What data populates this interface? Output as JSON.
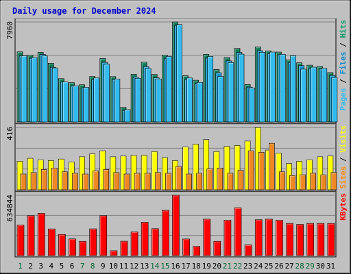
{
  "chart_data": {
    "type": "bar",
    "title": "Daily usage for December 2024",
    "title_color": "#0000cc",
    "days": [
      "1",
      "2",
      "3",
      "4",
      "5",
      "6",
      "7",
      "8",
      "9",
      "10",
      "11",
      "12",
      "13",
      "14",
      "15",
      "16",
      "17",
      "18",
      "19",
      "20",
      "21",
      "22",
      "23",
      "24",
      "25",
      "26",
      "27",
      "28",
      "29",
      "30",
      "31"
    ],
    "weekend_days": [
      "1",
      "7",
      "8",
      "14",
      "15",
      "21",
      "22",
      "28",
      "29"
    ],
    "weekend_color": "#006633",
    "weekday_color": "#000000",
    "panels": [
      {
        "max_label": "7960",
        "max": 7960,
        "legend": [
          {
            "text": "Pages",
            "color": "#33bbee"
          },
          {
            "text": " / ",
            "color": "#000000"
          },
          {
            "text": "Files",
            "color": "#0088cc"
          },
          {
            "text": " / ",
            "color": "#000000"
          },
          {
            "text": "Hits",
            "color": "#009966"
          }
        ],
        "series": [
          {
            "name": "Hits",
            "color": "#0d7a55",
            "values": [
              5580,
              5310,
              5540,
              4670,
              3450,
              3130,
              2960,
              3620,
              5050,
              3610,
              1170,
              3800,
              4760,
              3780,
              5320,
              7960,
              3680,
              3320,
              5380,
              4180,
              5130,
              5850,
              2980,
              5960,
              5660,
              5560,
              4950,
              4710,
              4520,
              4410,
              3930
            ]
          },
          {
            "name": "Files",
            "color": "#0090cc",
            "values": [
              5250,
              5060,
              5370,
              4350,
              3170,
              2860,
              2700,
              3380,
              4740,
              3370,
              920,
              3570,
              4400,
              3510,
              5020,
              7650,
              3380,
              3070,
              5070,
              3920,
              4860,
              5530,
              2770,
              5670,
              5420,
              5340,
              4730,
              4490,
              4270,
              4210,
              3700
            ]
          },
          {
            "name": "Pages",
            "color": "#33bbee",
            "values": [
              5260,
              5120,
              5250,
              4300,
              3180,
              2880,
              2750,
              3500,
              4590,
              3420,
              980,
              3470,
              4250,
              3420,
              5220,
              7760,
              3500,
              3150,
              5210,
              3630,
              4720,
              5390,
              2710,
              5540,
              5560,
              5380,
              5270,
              4200,
              4360,
              4270,
              3540
            ]
          }
        ]
      },
      {
        "max_label": "416",
        "max": 416,
        "legend": [
          {
            "text": "Sites",
            "color": "#ff8800"
          },
          {
            "text": " / ",
            "color": "#000000"
          },
          {
            "text": "Visits",
            "color": "#ffff00"
          }
        ],
        "series": [
          {
            "name": "Visits",
            "color": "#ffff00",
            "values": [
              190,
              210,
              200,
              195,
              205,
              185,
              220,
              240,
              260,
              220,
              225,
              230,
              230,
              255,
              215,
              195,
              285,
              305,
              335,
              255,
              290,
              295,
              325,
              415,
              265,
              245,
              175,
              190,
              200,
              220,
              225
            ]
          },
          {
            "name": "Sites",
            "color": "#ee8822",
            "values": [
              105,
              115,
              135,
              145,
              120,
              110,
              105,
              125,
              135,
              115,
              105,
              110,
              110,
              115,
              110,
              155,
              105,
              110,
              140,
              145,
              110,
              130,
              260,
              250,
              310,
              120,
              95,
              100,
              110,
              100,
              115
            ]
          }
        ]
      },
      {
        "max_label": "634844",
        "max": 634844,
        "legend": [
          {
            "text": "KBytes",
            "color": "#ff0000"
          }
        ],
        "series": [
          {
            "name": "KBytes",
            "color": "#ff0000",
            "values": [
              322000,
              420000,
              444000,
              280000,
              222000,
              175000,
              150000,
              281000,
              420000,
              51000,
              151000,
              248000,
              351000,
              283000,
              476000,
              634844,
              174000,
              97000,
              383000,
              150000,
              372000,
              502000,
              112000,
              377000,
              383000,
              372000,
              338000,
              328000,
              338000,
              338000,
              338000
            ]
          }
        ]
      }
    ]
  }
}
